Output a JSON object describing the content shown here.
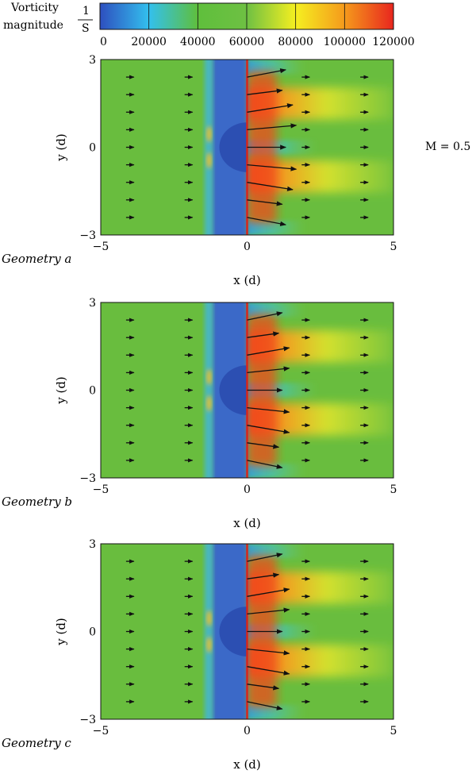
{
  "colorbar": {
    "label_line1": "Vorticity",
    "label_line2": "magnitude",
    "unit_numerator": "1",
    "unit_denominator": "S",
    "ticks": [
      "0",
      "20000",
      "40000",
      "60000",
      "80000",
      "100000",
      "120000"
    ],
    "min": 0,
    "max": 120000,
    "colors": [
      "#2e4fbf",
      "#33c0ee",
      "#5fbf3c",
      "#6ec043",
      "#f5ef20",
      "#f59a1c",
      "#e8261e"
    ]
  },
  "condition_label": "M = 0.5",
  "chart_data": [
    {
      "type": "heatmap",
      "title": "",
      "caption": "Geometry a",
      "xlabel": "x (d)",
      "ylabel": "y (d)",
      "xlim": [
        -5,
        5
      ],
      "ylim": [
        -3,
        3
      ],
      "xticks": [
        "−5",
        "0",
        "5"
      ],
      "yticks": [
        "3",
        "0",
        "−3"
      ],
      "upstream_arrow_columns_x": [
        -4,
        -2
      ],
      "downstream_arrow_columns_x": [
        2,
        4
      ],
      "arrow_rows_y": [
        2.4,
        1.8,
        1.2,
        0.6,
        0.0,
        -0.6,
        -1.2,
        -1.8,
        -2.4
      ],
      "wake_arrow_lengths": [
        1.1,
        1.0,
        1.3,
        1.4,
        1.1,
        1.4,
        1.3,
        1.0,
        1.1
      ]
    },
    {
      "type": "heatmap",
      "title": "",
      "caption": "Geometry b",
      "xlabel": "x (d)",
      "ylabel": "y (d)",
      "xlim": [
        -5,
        5
      ],
      "ylim": [
        -3,
        3
      ],
      "xticks": [
        "−5",
        "0",
        "5"
      ],
      "yticks": [
        "3",
        "0",
        "−3"
      ],
      "upstream_arrow_columns_x": [
        -4,
        -2
      ],
      "downstream_arrow_columns_x": [
        2,
        4
      ],
      "arrow_rows_y": [
        2.4,
        1.8,
        1.2,
        0.6,
        0.0,
        -0.6,
        -1.2,
        -1.8,
        -2.4
      ],
      "wake_arrow_lengths": [
        1.0,
        0.9,
        1.2,
        1.2,
        1.0,
        1.2,
        1.2,
        0.9,
        1.0
      ]
    },
    {
      "type": "heatmap",
      "title": "",
      "caption": "Geometry c",
      "xlabel": "x (d)",
      "ylabel": "y (d)",
      "xlim": [
        -5,
        5
      ],
      "ylim": [
        -3,
        3
      ],
      "xticks": [
        "−5",
        "0",
        "5"
      ],
      "yticks": [
        "3",
        "0",
        "−3"
      ],
      "upstream_arrow_columns_x": [
        -4,
        -2
      ],
      "downstream_arrow_columns_x": [
        2,
        4
      ],
      "arrow_rows_y": [
        2.4,
        1.8,
        1.2,
        0.6,
        0.0,
        -0.6,
        -1.2,
        -1.8,
        -2.4
      ],
      "wake_arrow_lengths": [
        1.0,
        0.9,
        1.2,
        1.2,
        1.0,
        1.2,
        1.2,
        0.9,
        1.0
      ]
    }
  ]
}
